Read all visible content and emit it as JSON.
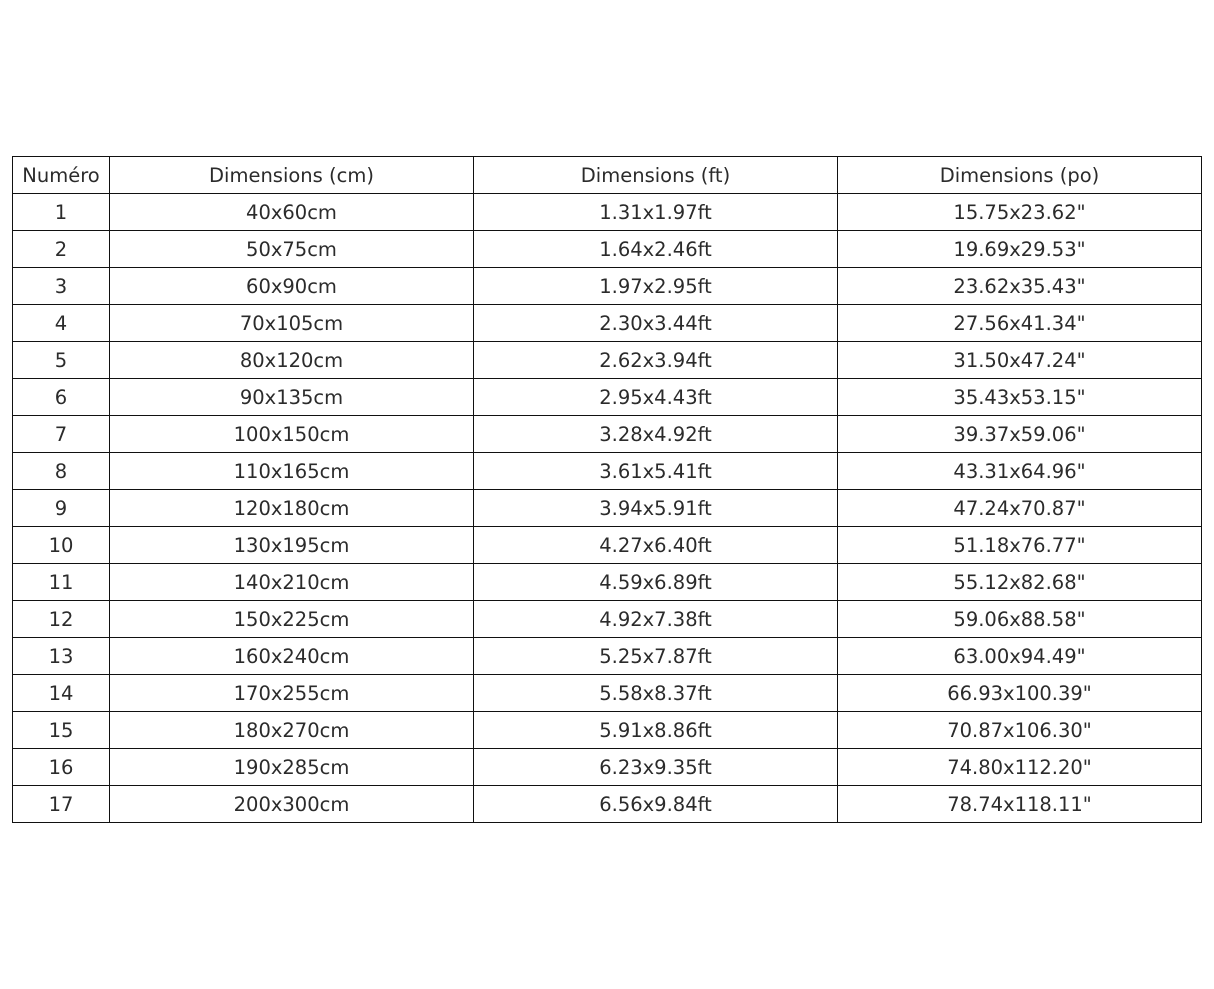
{
  "table": {
    "headers": [
      "Numéro",
      "Dimensions (cm)",
      "Dimensions (ft)",
      "Dimensions (po)"
    ],
    "rows": [
      [
        "1",
        "40x60cm",
        "1.31x1.97ft",
        "15.75x23.62\""
      ],
      [
        "2",
        "50x75cm",
        "1.64x2.46ft",
        "19.69x29.53\""
      ],
      [
        "3",
        "60x90cm",
        "1.97x2.95ft",
        "23.62x35.43\""
      ],
      [
        "4",
        "70x105cm",
        "2.30x3.44ft",
        "27.56x41.34\""
      ],
      [
        "5",
        "80x120cm",
        "2.62x3.94ft",
        "31.50x47.24\""
      ],
      [
        "6",
        "90x135cm",
        "2.95x4.43ft",
        "35.43x53.15\""
      ],
      [
        "7",
        "100x150cm",
        "3.28x4.92ft",
        "39.37x59.06\""
      ],
      [
        "8",
        "110x165cm",
        "3.61x5.41ft",
        "43.31x64.96\""
      ],
      [
        "9",
        "120x180cm",
        "3.94x5.91ft",
        "47.24x70.87\""
      ],
      [
        "10",
        "130x195cm",
        "4.27x6.40ft",
        "51.18x76.77\""
      ],
      [
        "11",
        "140x210cm",
        "4.59x6.89ft",
        "55.12x82.68\""
      ],
      [
        "12",
        "150x225cm",
        "4.92x7.38ft",
        "59.06x88.58\""
      ],
      [
        "13",
        "160x240cm",
        "5.25x7.87ft",
        "63.00x94.49\""
      ],
      [
        "14",
        "170x255cm",
        "5.58x8.37ft",
        "66.93x100.39\""
      ],
      [
        "15",
        "180x270cm",
        "5.91x8.86ft",
        "70.87x106.30\""
      ],
      [
        "16",
        "190x285cm",
        "6.23x9.35ft",
        "74.80x112.20\""
      ],
      [
        "17",
        "200x300cm",
        "6.56x9.84ft",
        "78.74x118.11\""
      ]
    ]
  }
}
